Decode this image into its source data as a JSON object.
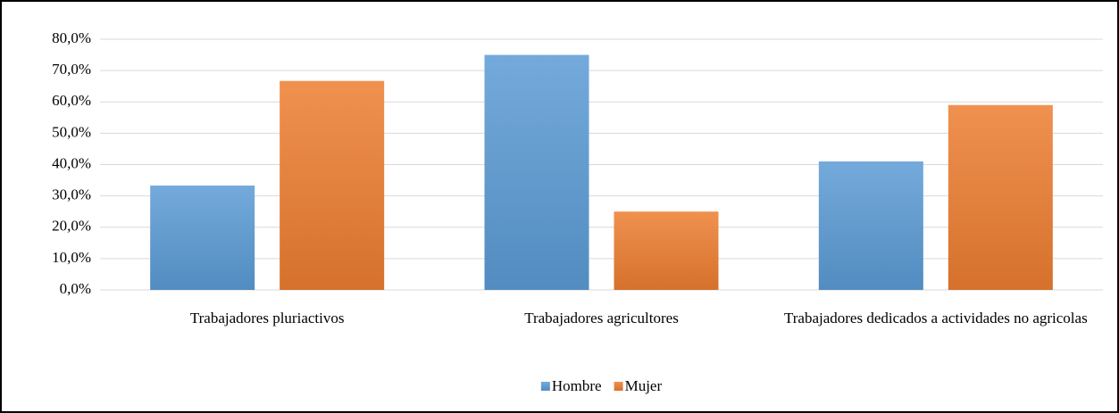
{
  "chart_data": {
    "type": "bar",
    "categories": [
      "Trabajadores pluriactivos",
      "Trabajadores agricultores",
      "Trabajadores dedicados a actividades no agricolas"
    ],
    "series": [
      {
        "name": "Hombre",
        "color": "#5b9bd5",
        "values": [
          33.3,
          75.0,
          41.0
        ]
      },
      {
        "name": "Mujer",
        "color": "#ed7d31",
        "values": [
          66.7,
          25.0,
          59.0
        ]
      }
    ],
    "ylim": [
      0,
      80
    ],
    "yticks": [
      {
        "value": 0,
        "label": "0,0%"
      },
      {
        "value": 10,
        "label": "10,0%"
      },
      {
        "value": 20,
        "label": "20,0%"
      },
      {
        "value": 30,
        "label": "30,0%"
      },
      {
        "value": 40,
        "label": "40,0%"
      },
      {
        "value": 50,
        "label": "50,0%"
      },
      {
        "value": 60,
        "label": "60,0%"
      },
      {
        "value": 70,
        "label": "70,0%"
      },
      {
        "value": 80,
        "label": "80,0%"
      }
    ],
    "grid": true,
    "legend": "bottom"
  }
}
